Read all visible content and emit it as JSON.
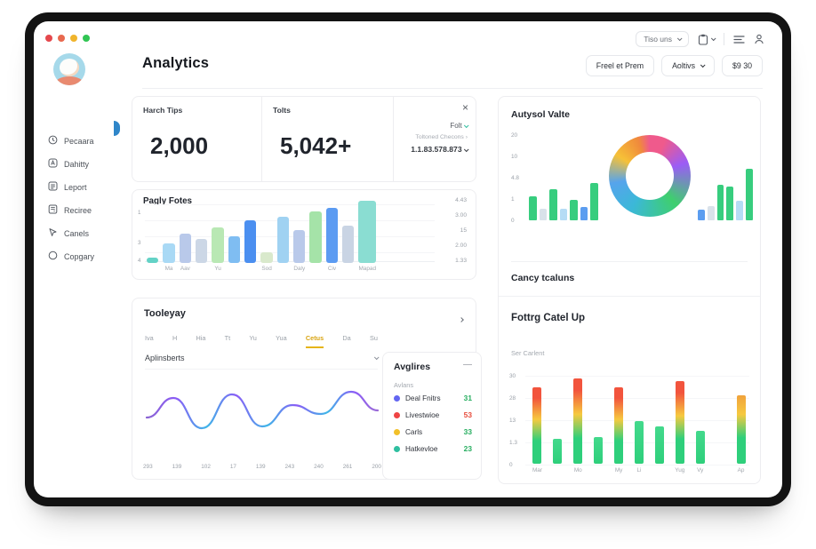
{
  "window": {
    "traffic_lights": [
      "#e5484d",
      "#e8694f",
      "#f0b42c",
      "#31c553"
    ]
  },
  "topbar": {
    "range_label": "Tiso uns",
    "icon_names": [
      "clipboard-icon",
      "list-icon",
      "user-icon"
    ]
  },
  "sidebar": {
    "items": [
      {
        "icon": "clock",
        "label": "Pecaara"
      },
      {
        "icon": "badge",
        "label": "Dahitty"
      },
      {
        "icon": "report",
        "label": "Leport"
      },
      {
        "icon": "receipt",
        "label": "Reciree"
      },
      {
        "icon": "cursor",
        "label": "Canels"
      },
      {
        "icon": "circle",
        "label": "Copgary"
      }
    ]
  },
  "header": {
    "title": "Analytics",
    "btn_secondary": "Freel et Prem",
    "btn_dropdown": "Aoltivs",
    "btn_price": "$9 30"
  },
  "stats": {
    "card1_label": "Harch Tips",
    "card1_value": "2,000",
    "card2_label": "Tolts",
    "card2_value": "5,042+"
  },
  "filter_card": {
    "row1": "Folt",
    "row2": "Toltoned Checons",
    "row3": "1.1.83.578.873"
  },
  "tabs": {
    "items": [
      "Iva",
      "H",
      "Hia",
      "Tt",
      "Yu",
      "Yua",
      "Cetus",
      "Da",
      "Su"
    ],
    "active": "Cetus"
  },
  "sections": {
    "weekly_title": "Pagly Fotes",
    "trend_title": "Tooleyay",
    "trend_dropdown": "Aplinsberts",
    "donut_title": "Autysol Valte",
    "mid_title": "Cancy tcaluns",
    "stacked_title": "Fottrg Catel Up",
    "stacked_subtitle": "Ser Carlent"
  },
  "legend_panel": {
    "title": "Avglires",
    "subtitle": "Avlans",
    "items": [
      {
        "dot_color": "#6366f1",
        "label": "Deal Fnitrs",
        "value": "31",
        "value_color": "#27ae60"
      },
      {
        "dot_color": "#ef4444",
        "label": "Livestwioe",
        "value": "53",
        "value_color": "#e74c3c"
      },
      {
        "dot_color": "#f2c029",
        "label": "Carls",
        "value": "33",
        "value_color": "#27ae60"
      },
      {
        "dot_color": "#2fbfa0",
        "label": "Hatkevloe",
        "value": "23",
        "value_color": "#27ae60"
      }
    ]
  },
  "chart_data": [
    {
      "id": "weekly-bars",
      "type": "bar",
      "title": "Pagly Fotes",
      "categories": [
        "",
        "Ma",
        "Aav",
        "",
        "Yu",
        "",
        "",
        "Sod",
        "",
        "Daly",
        "",
        "Civ",
        "",
        "Mapad"
      ],
      "values": [
        6,
        22,
        33,
        27,
        40,
        30,
        48,
        12,
        52,
        37,
        58,
        62,
        42,
        70
      ],
      "bar_colors": [
        "#63d2c6",
        "#a9d9f5",
        "#b9c9ea",
        "#ccd7e6",
        "#b9e8b4",
        "#7fbdf2",
        "#4b8ff0",
        "#d9e9cc",
        "#a0d2f2",
        "#b9c9ea",
        "#a5e3a8",
        "#5b9bf2",
        "#c9d4e4",
        "#8addd2"
      ],
      "right_axis_ticks": [
        "4.43",
        "3.00",
        "15",
        "2.00",
        "1.33"
      ],
      "left_axis_ticks": [
        "1",
        "3",
        "4"
      ],
      "ylim": [
        0,
        72
      ],
      "grid": true,
      "legend": "none"
    },
    {
      "id": "donut-activity",
      "type": "pie",
      "title": "Autysol Valte",
      "y_ticks": [
        "20",
        "10",
        "4.8",
        "1",
        "0"
      ],
      "segments": [
        {
          "color": "#ef5a8c",
          "pct": 13
        },
        {
          "color": "#9b5cf6",
          "pct": 13
        },
        {
          "color": "#3ecf6e",
          "pct": 24
        },
        {
          "color": "#3bb8d8",
          "pct": 16
        },
        {
          "color": "#56a4ec",
          "pct": 12
        },
        {
          "color": "#f6c137",
          "pct": 12
        },
        {
          "color": "#f08a3c",
          "pct": 10
        }
      ],
      "side_bars_left": [
        {
          "h": 27,
          "color": "#37cd7e"
        },
        {
          "h": 13,
          "color": "#d9e2ea"
        },
        {
          "h": 35,
          "color": "#37cd7e"
        },
        {
          "h": 13,
          "color": "#b5dcf5"
        },
        {
          "h": 23,
          "color": "#37cd7e"
        },
        {
          "h": 15,
          "color": "#5b9df0"
        },
        {
          "h": 42,
          "color": "#37cd7e"
        }
      ],
      "side_bars_right": [
        {
          "h": 12,
          "color": "#5b9df0"
        },
        {
          "h": 16,
          "color": "#d9e2ea"
        },
        {
          "h": 40,
          "color": "#37cd7e"
        },
        {
          "h": 38,
          "color": "#37cd7e"
        },
        {
          "h": 22,
          "color": "#b5dcf5"
        },
        {
          "h": 58,
          "color": "#37cd7e"
        }
      ]
    },
    {
      "id": "trend-line",
      "type": "line",
      "x_labels": [
        "293",
        "139",
        "102",
        "17",
        "139",
        "243",
        "240",
        "261",
        "200"
      ],
      "points": [
        [
          4,
          42
        ],
        [
          34,
          20
        ],
        [
          66,
          54
        ],
        [
          100,
          16
        ],
        [
          134,
          52
        ],
        [
          168,
          28
        ],
        [
          200,
          38
        ],
        [
          234,
          13
        ],
        [
          264,
          34
        ]
      ],
      "stroke_colors": [
        "#8b5cf6",
        "#3fb6e8"
      ],
      "grid": false,
      "legend": "none"
    },
    {
      "id": "stacked-bars",
      "type": "bar",
      "title": "Fottrg Catel Up",
      "y_ticks": [
        "30",
        "28",
        "13",
        "1.3",
        "0"
      ],
      "categories": [
        "Mar",
        "",
        "Mo",
        "",
        "My",
        "Li",
        "",
        "Yug",
        "Vy",
        "",
        "Ap"
      ],
      "bars": [
        {
          "h": 86,
          "kind": "full"
        },
        {
          "h": 28,
          "kind": "green"
        },
        {
          "h": 96,
          "kind": "full"
        },
        {
          "h": 30,
          "kind": "green"
        },
        {
          "h": 86,
          "kind": "full"
        },
        {
          "h": 48,
          "kind": "green"
        },
        {
          "h": 42,
          "kind": "green"
        },
        {
          "h": 93,
          "kind": "full"
        },
        {
          "h": 37,
          "kind": "green"
        },
        {
          "h": 0,
          "kind": "none"
        },
        {
          "h": 77,
          "kind": "warm"
        }
      ],
      "colors": {
        "green": "#2ecf7b",
        "yellow": "#f6c93f",
        "red": "#f2543d",
        "orange": "#f0a23c"
      },
      "ylim": [
        0,
        100
      ],
      "grid": true,
      "legend": "none"
    }
  ]
}
